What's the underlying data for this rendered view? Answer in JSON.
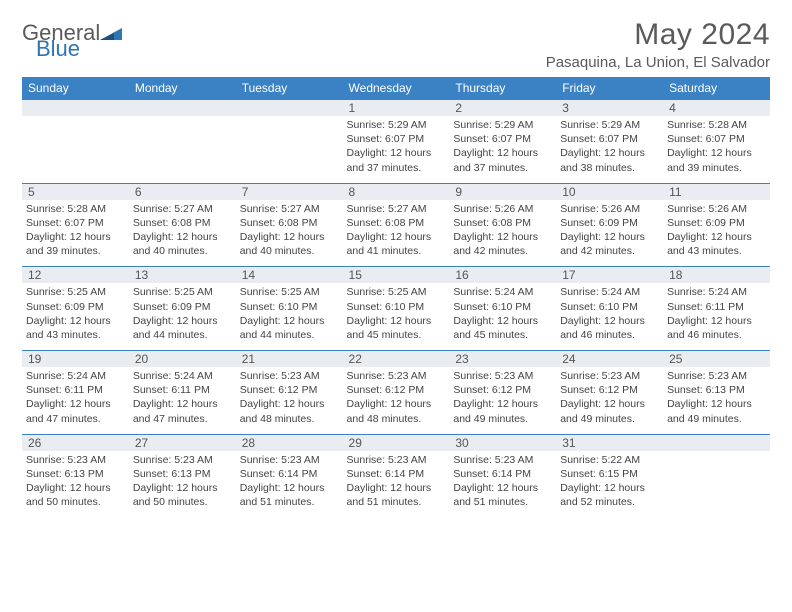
{
  "brand": {
    "part1": "General",
    "part2": "Blue",
    "color_gray": "#5a5a5a",
    "color_blue": "#2e75b6"
  },
  "title": "May 2024",
  "location": "Pasaquina, La Union, El Salvador",
  "header_bg": "#3b82c4",
  "daynum_bg": "#e9edf1",
  "border_color": "#3b82c4",
  "weekdays": [
    "Sunday",
    "Monday",
    "Tuesday",
    "Wednesday",
    "Thursday",
    "Friday",
    "Saturday"
  ],
  "weeks": [
    [
      null,
      null,
      null,
      {
        "n": "1",
        "sr": "5:29 AM",
        "ss": "6:07 PM",
        "dl": "12 hours and 37 minutes."
      },
      {
        "n": "2",
        "sr": "5:29 AM",
        "ss": "6:07 PM",
        "dl": "12 hours and 37 minutes."
      },
      {
        "n": "3",
        "sr": "5:29 AM",
        "ss": "6:07 PM",
        "dl": "12 hours and 38 minutes."
      },
      {
        "n": "4",
        "sr": "5:28 AM",
        "ss": "6:07 PM",
        "dl": "12 hours and 39 minutes."
      }
    ],
    [
      {
        "n": "5",
        "sr": "5:28 AM",
        "ss": "6:07 PM",
        "dl": "12 hours and 39 minutes."
      },
      {
        "n": "6",
        "sr": "5:27 AM",
        "ss": "6:08 PM",
        "dl": "12 hours and 40 minutes."
      },
      {
        "n": "7",
        "sr": "5:27 AM",
        "ss": "6:08 PM",
        "dl": "12 hours and 40 minutes."
      },
      {
        "n": "8",
        "sr": "5:27 AM",
        "ss": "6:08 PM",
        "dl": "12 hours and 41 minutes."
      },
      {
        "n": "9",
        "sr": "5:26 AM",
        "ss": "6:08 PM",
        "dl": "12 hours and 42 minutes."
      },
      {
        "n": "10",
        "sr": "5:26 AM",
        "ss": "6:09 PM",
        "dl": "12 hours and 42 minutes."
      },
      {
        "n": "11",
        "sr": "5:26 AM",
        "ss": "6:09 PM",
        "dl": "12 hours and 43 minutes."
      }
    ],
    [
      {
        "n": "12",
        "sr": "5:25 AM",
        "ss": "6:09 PM",
        "dl": "12 hours and 43 minutes."
      },
      {
        "n": "13",
        "sr": "5:25 AM",
        "ss": "6:09 PM",
        "dl": "12 hours and 44 minutes."
      },
      {
        "n": "14",
        "sr": "5:25 AM",
        "ss": "6:10 PM",
        "dl": "12 hours and 44 minutes."
      },
      {
        "n": "15",
        "sr": "5:25 AM",
        "ss": "6:10 PM",
        "dl": "12 hours and 45 minutes."
      },
      {
        "n": "16",
        "sr": "5:24 AM",
        "ss": "6:10 PM",
        "dl": "12 hours and 45 minutes."
      },
      {
        "n": "17",
        "sr": "5:24 AM",
        "ss": "6:10 PM",
        "dl": "12 hours and 46 minutes."
      },
      {
        "n": "18",
        "sr": "5:24 AM",
        "ss": "6:11 PM",
        "dl": "12 hours and 46 minutes."
      }
    ],
    [
      {
        "n": "19",
        "sr": "5:24 AM",
        "ss": "6:11 PM",
        "dl": "12 hours and 47 minutes."
      },
      {
        "n": "20",
        "sr": "5:24 AM",
        "ss": "6:11 PM",
        "dl": "12 hours and 47 minutes."
      },
      {
        "n": "21",
        "sr": "5:23 AM",
        "ss": "6:12 PM",
        "dl": "12 hours and 48 minutes."
      },
      {
        "n": "22",
        "sr": "5:23 AM",
        "ss": "6:12 PM",
        "dl": "12 hours and 48 minutes."
      },
      {
        "n": "23",
        "sr": "5:23 AM",
        "ss": "6:12 PM",
        "dl": "12 hours and 49 minutes."
      },
      {
        "n": "24",
        "sr": "5:23 AM",
        "ss": "6:12 PM",
        "dl": "12 hours and 49 minutes."
      },
      {
        "n": "25",
        "sr": "5:23 AM",
        "ss": "6:13 PM",
        "dl": "12 hours and 49 minutes."
      }
    ],
    [
      {
        "n": "26",
        "sr": "5:23 AM",
        "ss": "6:13 PM",
        "dl": "12 hours and 50 minutes."
      },
      {
        "n": "27",
        "sr": "5:23 AM",
        "ss": "6:13 PM",
        "dl": "12 hours and 50 minutes."
      },
      {
        "n": "28",
        "sr": "5:23 AM",
        "ss": "6:14 PM",
        "dl": "12 hours and 51 minutes."
      },
      {
        "n": "29",
        "sr": "5:23 AM",
        "ss": "6:14 PM",
        "dl": "12 hours and 51 minutes."
      },
      {
        "n": "30",
        "sr": "5:23 AM",
        "ss": "6:14 PM",
        "dl": "12 hours and 51 minutes."
      },
      {
        "n": "31",
        "sr": "5:22 AM",
        "ss": "6:15 PM",
        "dl": "12 hours and 52 minutes."
      },
      null
    ]
  ],
  "labels": {
    "sunrise": "Sunrise:",
    "sunset": "Sunset:",
    "daylight": "Daylight:"
  }
}
